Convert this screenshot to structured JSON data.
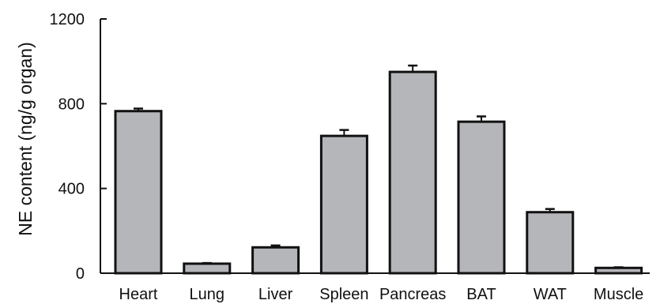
{
  "chart_data": {
    "type": "bar",
    "title": "",
    "xlabel": "",
    "ylabel": "NE content (ng/g organ)",
    "ylim": [
      0,
      1200
    ],
    "yticks": [
      0,
      400,
      800,
      1200
    ],
    "grid": false,
    "legend": "none",
    "categories": [
      "Heart",
      "Lung",
      "Liver",
      "Spleen",
      "Pancreas",
      "BAT",
      "WAT",
      "Muscle"
    ],
    "values": [
      765,
      45,
      122,
      648,
      950,
      715,
      288,
      25
    ],
    "error_plus": [
      12,
      3,
      9,
      28,
      30,
      25,
      15,
      3
    ],
    "colors": {
      "bar_fill": "#b5b6b9",
      "bar_stroke": "#111111",
      "axis": "#111111"
    }
  }
}
